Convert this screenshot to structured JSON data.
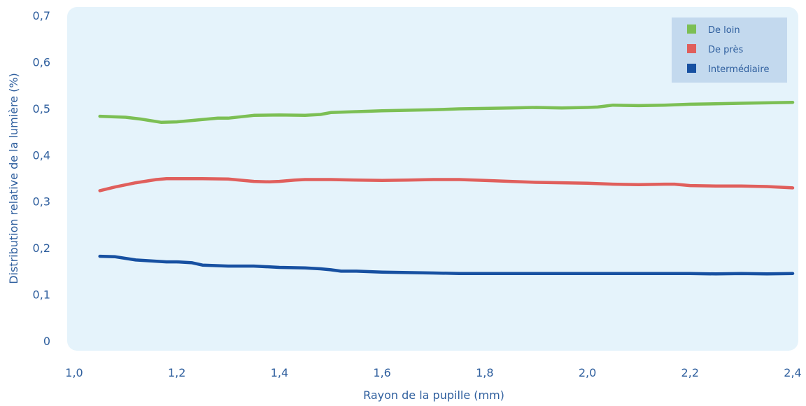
{
  "chart_data": {
    "type": "line",
    "title": "",
    "xlabel": "Rayon de la pupille (mm)",
    "ylabel": "Distribution relative de la lumière (%)",
    "xlim": [
      1.0,
      2.4
    ],
    "ylim": [
      0,
      0.7
    ],
    "xticks": [
      "1,0",
      "1,2",
      "1,4",
      "1,6",
      "1,8",
      "2,0",
      "2,2",
      "2,4"
    ],
    "xtick_values": [
      1.0,
      1.2,
      1.4,
      1.6,
      1.8,
      2.0,
      2.2,
      2.4
    ],
    "yticks": [
      "0",
      "0,1",
      "0,2",
      "0,3",
      "0,4",
      "0,5",
      "0,6",
      "0,7"
    ],
    "ytick_values": [
      0,
      0.1,
      0.2,
      0.3,
      0.4,
      0.5,
      0.6,
      0.7
    ],
    "grid": false,
    "legend_position": "top-right",
    "plot_background": "#e5f3fb",
    "legend_background": "#c3d9ee",
    "text_color": "#2f5f9e",
    "series": [
      {
        "name": "De loin",
        "color": "#7cbf54",
        "x": [
          1.05,
          1.1,
          1.13,
          1.17,
          1.2,
          1.25,
          1.28,
          1.3,
          1.35,
          1.4,
          1.45,
          1.48,
          1.5,
          1.55,
          1.6,
          1.7,
          1.75,
          1.8,
          1.85,
          1.9,
          1.95,
          2.0,
          2.02,
          2.05,
          2.1,
          2.15,
          2.2,
          2.25,
          2.3,
          2.35,
          2.4
        ],
        "values": [
          0.483,
          0.481,
          0.477,
          0.47,
          0.471,
          0.476,
          0.479,
          0.479,
          0.485,
          0.486,
          0.485,
          0.487,
          0.491,
          0.493,
          0.495,
          0.497,
          0.499,
          0.5,
          0.501,
          0.502,
          0.501,
          0.502,
          0.503,
          0.507,
          0.506,
          0.507,
          0.509,
          0.51,
          0.511,
          0.512,
          0.513
        ]
      },
      {
        "name": "De près",
        "color": "#e05f5c",
        "x": [
          1.05,
          1.08,
          1.12,
          1.16,
          1.18,
          1.2,
          1.25,
          1.3,
          1.35,
          1.38,
          1.4,
          1.43,
          1.45,
          1.5,
          1.55,
          1.6,
          1.65,
          1.7,
          1.75,
          1.8,
          1.85,
          1.9,
          1.95,
          2.0,
          2.05,
          2.1,
          2.15,
          2.17,
          2.2,
          2.25,
          2.3,
          2.35,
          2.4
        ],
        "values": [
          0.323,
          0.331,
          0.34,
          0.347,
          0.349,
          0.349,
          0.349,
          0.348,
          0.343,
          0.342,
          0.343,
          0.346,
          0.347,
          0.347,
          0.346,
          0.345,
          0.346,
          0.347,
          0.347,
          0.345,
          0.343,
          0.341,
          0.34,
          0.339,
          0.337,
          0.336,
          0.337,
          0.337,
          0.334,
          0.333,
          0.333,
          0.332,
          0.329
        ]
      },
      {
        "name": "Intermédiaire",
        "color": "#1750a1",
        "x": [
          1.05,
          1.08,
          1.12,
          1.15,
          1.18,
          1.2,
          1.23,
          1.25,
          1.3,
          1.35,
          1.4,
          1.45,
          1.48,
          1.5,
          1.52,
          1.55,
          1.6,
          1.7,
          1.75,
          1.8,
          1.9,
          2.0,
          2.1,
          2.2,
          2.25,
          2.3,
          2.35,
          2.4
        ],
        "values": [
          0.182,
          0.181,
          0.174,
          0.172,
          0.17,
          0.17,
          0.168,
          0.163,
          0.161,
          0.161,
          0.158,
          0.157,
          0.155,
          0.153,
          0.15,
          0.15,
          0.148,
          0.146,
          0.145,
          0.145,
          0.145,
          0.145,
          0.145,
          0.145,
          0.144,
          0.145,
          0.144,
          0.145
        ]
      }
    ]
  }
}
